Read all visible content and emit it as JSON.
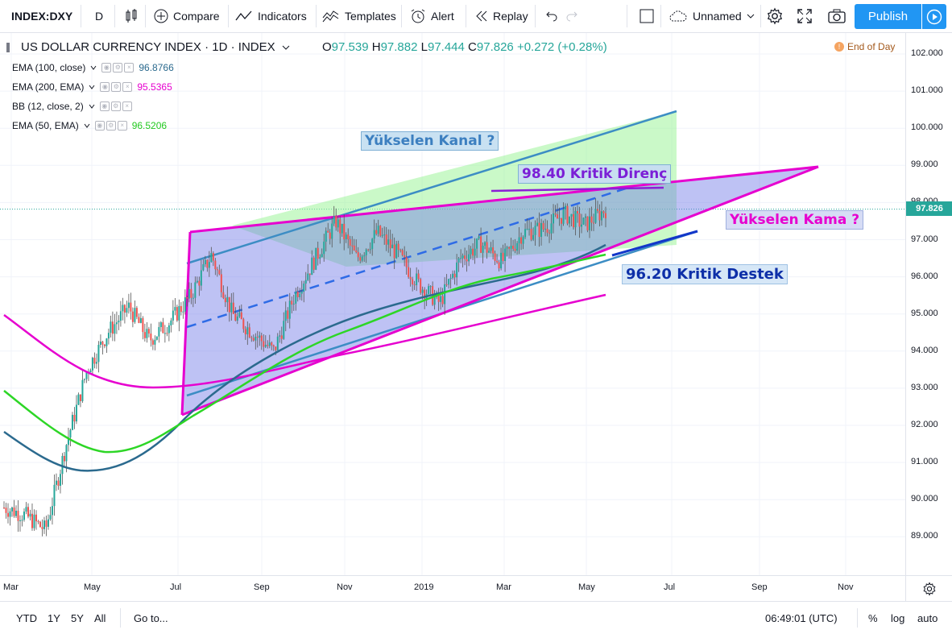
{
  "toolbar": {
    "symbol": "INDEX:DXY",
    "interval": "D",
    "compare": "Compare",
    "indicators": "Indicators",
    "templates": "Templates",
    "alert": "Alert",
    "replay": "Replay",
    "layout_name": "Unnamed",
    "publish": "Publish"
  },
  "legend": {
    "title": "US DOLLAR CURRENCY INDEX · 1D · INDEX",
    "open_label": "O",
    "open": "97.539",
    "high_label": "H",
    "high": "97.882",
    "low_label": "L",
    "low": "97.444",
    "close_label": "C",
    "close": "97.826",
    "change": "+0.272 (+0.28%)",
    "end_of_day": "End of Day",
    "indicators": [
      {
        "name": "EMA (100, close)",
        "value": "96.8766",
        "color": "#2b6a8e"
      },
      {
        "name": "EMA (200, EMA)",
        "value": "95.5365",
        "color": "#e600cf"
      },
      {
        "name": "BB (12, close, 2)",
        "value": "",
        "color": "#787b86"
      },
      {
        "name": "EMA (50, EMA)",
        "value": "96.5206",
        "color": "#22c91f"
      }
    ]
  },
  "annotations": {
    "channel": "Yükselen Kanal ?",
    "resistance": "98.40 Kritik Direnç",
    "wedge": "Yükselen Kama ?",
    "support": "96.20 Kritik Destek"
  },
  "price_axis": {
    "labels": [
      "102.000",
      "101.000",
      "100.000",
      "99.000",
      "98.000",
      "97.000",
      "96.000",
      "95.000",
      "94.000",
      "93.000",
      "92.000",
      "91.000",
      "90.000",
      "89.000"
    ],
    "current": "97.826",
    "current_color": "#26a69a"
  },
  "time_axis": {
    "labels": [
      "Mar",
      "May",
      "Jul",
      "Sep",
      "Nov",
      "2019",
      "Mar",
      "May",
      "Jul",
      "Sep",
      "Nov"
    ]
  },
  "bottom": {
    "ytd": "YTD",
    "y1": "1Y",
    "y5": "5Y",
    "all": "All",
    "goto": "Go to...",
    "time": "06:49:01 (UTC)",
    "percent": "%",
    "log": "log",
    "auto": "auto"
  },
  "chart_data": {
    "type": "candlestick",
    "title": "US DOLLAR CURRENCY INDEX · 1D · INDEX",
    "ylim": [
      88.5,
      102.5
    ],
    "x_labels": [
      "Mar",
      "May",
      "Jul",
      "Sep",
      "Nov",
      "2019",
      "Mar",
      "May",
      "Jul",
      "Sep",
      "Nov"
    ],
    "close_path": [
      [
        "Mar 2018",
        89.8
      ],
      [
        "Apr 2018",
        89.6
      ],
      [
        "Apr 2018",
        89.2
      ],
      [
        "May 2018",
        91.5
      ],
      [
        "May 2018",
        93.5
      ],
      [
        "Jun 2018",
        94.5
      ],
      [
        "Jun 2018",
        95.2
      ],
      [
        "Jul 2018",
        94.3
      ],
      [
        "Jul 2018",
        94.8
      ],
      [
        "Aug 2018",
        95.5
      ],
      [
        "Aug 2018",
        96.6
      ],
      [
        "Aug 2018",
        95.0
      ],
      [
        "Sep 2018",
        94.5
      ],
      [
        "Sep 2018",
        94.0
      ],
      [
        "Oct 2018",
        95.5
      ],
      [
        "Oct 2018",
        96.5
      ],
      [
        "Nov 2018",
        97.5
      ],
      [
        "Nov 2018",
        96.5
      ],
      [
        "Dec 2018",
        97.2
      ],
      [
        "Dec 2018",
        96.6
      ],
      [
        "Jan 2019",
        95.8
      ],
      [
        "Jan 2019",
        95.3
      ],
      [
        "Feb 2019",
        96.5
      ],
      [
        "Feb 2019",
        96.9
      ],
      [
        "Mar 2019",
        96.4
      ],
      [
        "Mar 2019",
        97.2
      ],
      [
        "Apr 2019",
        97.3
      ],
      [
        "Apr 2019",
        97.7
      ],
      [
        "May 2019",
        97.4
      ],
      [
        "May 2019",
        97.826
      ]
    ]
  },
  "colors": {
    "accent": "#2196f3",
    "wedge": "#e600cf",
    "channel": "#3c8dc4",
    "up": "#26a69a",
    "down": "#ef5350"
  }
}
